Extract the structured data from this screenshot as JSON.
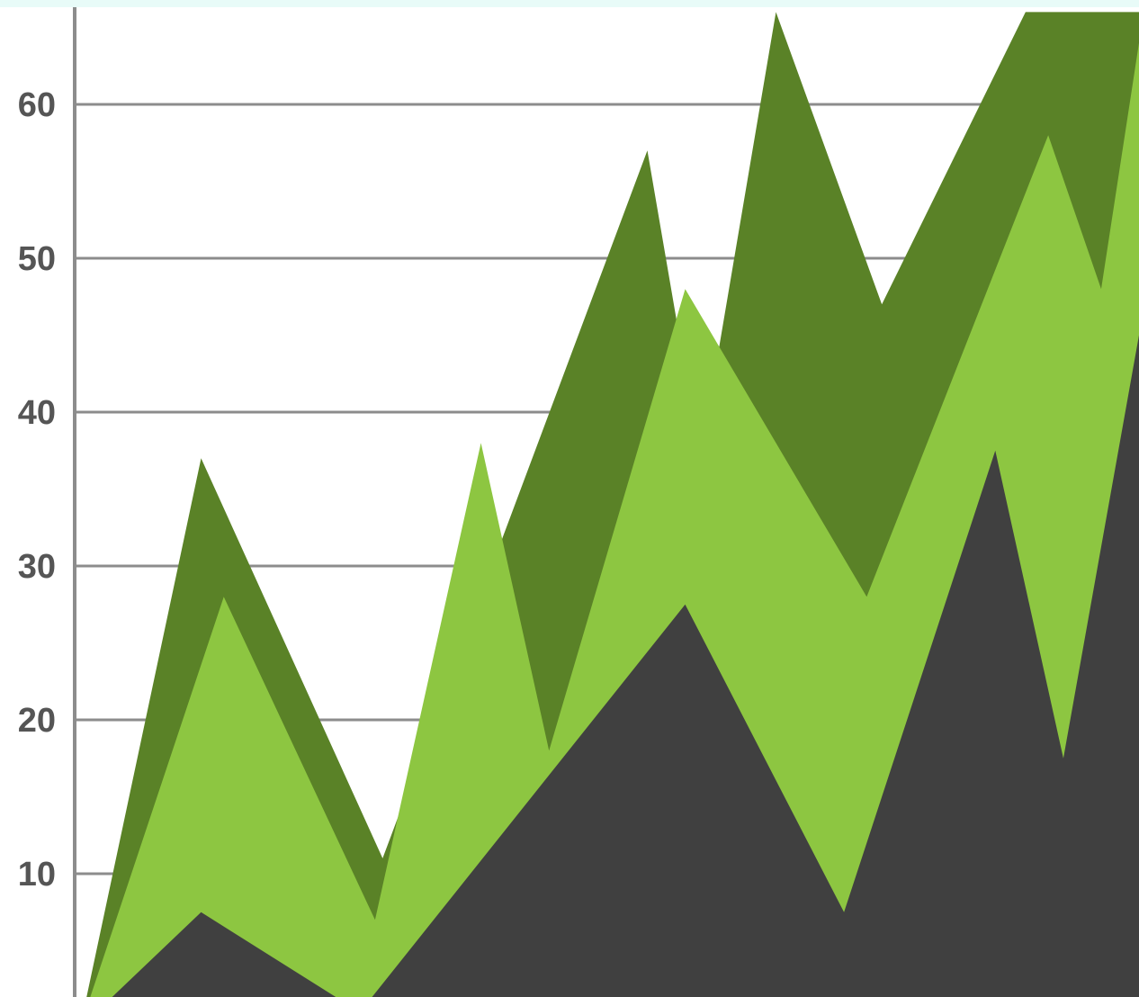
{
  "chart_data": {
    "type": "area",
    "title": "",
    "xlabel": "",
    "ylabel": "",
    "ylim": [
      0,
      65
    ],
    "xlim": [
      0,
      14
    ],
    "grid": true,
    "legend": "none",
    "y_ticks": [
      {
        "value": 10,
        "label": "10"
      },
      {
        "value": 20,
        "label": "20"
      },
      {
        "value": 30,
        "label": "30"
      },
      {
        "value": 40,
        "label": "40"
      },
      {
        "value": 50,
        "label": "50"
      },
      {
        "value": 60,
        "label": "60"
      }
    ],
    "series": [
      {
        "color": "#5a8227",
        "points": [
          [
            0,
            0
          ],
          [
            1.6,
            37
          ],
          [
            4,
            11
          ],
          [
            7.5,
            57
          ],
          [
            8.2,
            37
          ],
          [
            9.2,
            66
          ],
          [
            10.6,
            47
          ],
          [
            12.5,
            66
          ],
          [
            14,
            66
          ]
        ]
      },
      {
        "color": "#8dc641",
        "points": [
          [
            0,
            0
          ],
          [
            1.9,
            28
          ],
          [
            3.9,
            7
          ],
          [
            5.3,
            38
          ],
          [
            6.2,
            18
          ],
          [
            8,
            48
          ],
          [
            10.4,
            28
          ],
          [
            12.8,
            58
          ],
          [
            13.5,
            48
          ],
          [
            14,
            64
          ]
        ]
      },
      {
        "color": "#404040",
        "points": [
          [
            0,
            0
          ],
          [
            1.6,
            7.5
          ],
          [
            3.7,
            1
          ],
          [
            8,
            27.5
          ],
          [
            10.1,
            7.5
          ],
          [
            12.1,
            37.5
          ],
          [
            13,
            17.5
          ],
          [
            14,
            45
          ]
        ]
      }
    ]
  },
  "colors": {
    "axis": "#8c8c8c",
    "grid": "#8c8c8c",
    "tick_text": "#555555",
    "top_band": "#e8fbf8"
  }
}
